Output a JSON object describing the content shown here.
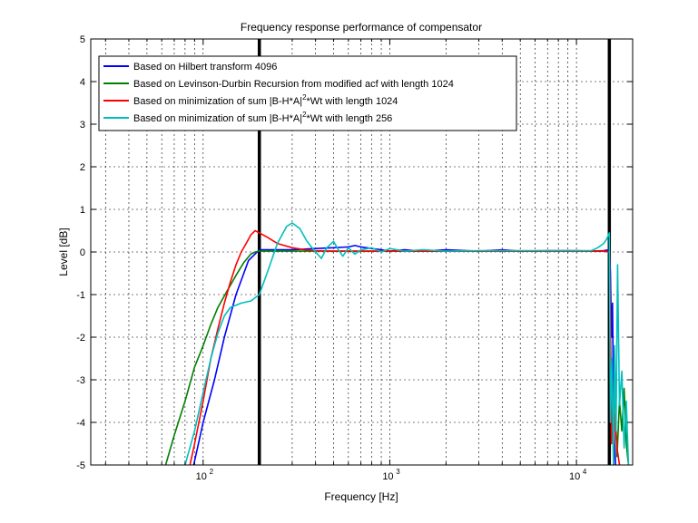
{
  "chart_data": {
    "type": "line",
    "title": "Frequency response performance of compensator",
    "xlabel": "Frequency [Hz]",
    "ylabel": "Level [dB]",
    "xscale": "log",
    "xlim": [
      25,
      20000
    ],
    "ylim": [
      -5,
      5
    ],
    "grid": true,
    "legend_position": "top-left",
    "x_ticks": [
      {
        "value": 100,
        "base": "10",
        "exp": "2"
      },
      {
        "value": 1000,
        "base": "10",
        "exp": "3"
      },
      {
        "value": 10000,
        "base": "10",
        "exp": "4"
      }
    ],
    "y_ticks": [
      {
        "value": 5,
        "label": "5"
      },
      {
        "value": 4,
        "label": "4"
      },
      {
        "value": 3,
        "label": "3"
      },
      {
        "value": 2,
        "label": "2"
      },
      {
        "value": 1,
        "label": "1"
      },
      {
        "value": 0,
        "label": "0"
      },
      {
        "value": -1,
        "label": "-1"
      },
      {
        "value": -2,
        "label": "-2"
      },
      {
        "value": -3,
        "label": "-3"
      },
      {
        "value": -4,
        "label": "-4"
      },
      {
        "value": -5,
        "label": "-5"
      }
    ],
    "vlines": [
      200,
      15000
    ],
    "legend": [
      {
        "pre": "Based on Hilbert transform 4096",
        "sup": "",
        "post": "",
        "color": "#0000ff"
      },
      {
        "pre": "Based on Levinson-Durbin Recursion from modified acf with length 1024",
        "sup": "",
        "post": "",
        "color": "#008000"
      },
      {
        "pre": "Based on minimization of sum |B-H*A|",
        "sup": "2",
        "post": "*Wt with length 1024",
        "color": "#ff0000"
      },
      {
        "pre": "Based on minimization of sum |B-H*A|",
        "sup": "2",
        "post": "*Wt with length 256",
        "color": "#00bfbf"
      }
    ],
    "series": [
      {
        "name": "Based on Hilbert transform 4096",
        "color": "#0000ff",
        "x": [
          89,
          100,
          115,
          130,
          150,
          175,
          200,
          230,
          300,
          400,
          500,
          600,
          650,
          700,
          800,
          900,
          1000,
          1200,
          1500,
          2000,
          3000,
          4000,
          5000,
          7000,
          10000,
          12000,
          14000,
          15000,
          15200,
          15400,
          15600,
          15800,
          16000,
          16200
        ],
        "y": [
          -5,
          -4.0,
          -3.0,
          -2.0,
          -1.0,
          -0.2,
          0.05,
          0.05,
          0.05,
          0.08,
          0.1,
          0.12,
          0.15,
          0.12,
          0.08,
          0.05,
          0.02,
          0.05,
          0.02,
          0.05,
          0.02,
          0.05,
          0.02,
          0.03,
          0.03,
          0.02,
          0.03,
          0.05,
          -0.5,
          -2.0,
          -1.2,
          -3.5,
          -4.5,
          -5
        ]
      },
      {
        "name": "Based on Levinson-Durbin Recursion from modified acf with length 1024",
        "color": "#008000",
        "x": [
          63,
          70,
          80,
          90,
          100,
          110,
          120,
          135,
          150,
          165,
          180,
          190,
          200,
          250,
          300,
          500,
          1000,
          2000,
          5000,
          10000,
          14000,
          15000,
          15300,
          15600,
          16000,
          16500,
          17000,
          17500,
          18000,
          18500,
          19000
        ],
        "y": [
          -5,
          -4.3,
          -3.5,
          -2.7,
          -2.2,
          -1.7,
          -1.3,
          -0.9,
          -0.55,
          -0.25,
          -0.05,
          0.0,
          0.02,
          0.02,
          0.02,
          0.02,
          0.02,
          0.02,
          0.02,
          0.02,
          0.02,
          0.0,
          -3.0,
          -4.0,
          -3.2,
          -4.8,
          -3.5,
          -4.2,
          -3.2,
          -4.5,
          -5
        ]
      },
      {
        "name": "Based on minimization of sum |B-H*A|^2*Wt with length 1024",
        "color": "#ff0000",
        "x": [
          85,
          90,
          100,
          110,
          120,
          130,
          140,
          150,
          160,
          170,
          180,
          190,
          200,
          220,
          250,
          300,
          350,
          400,
          500,
          1000,
          2000,
          5000,
          10000,
          14000,
          15000,
          15200,
          15400,
          15600,
          15800,
          16000,
          16500,
          17000
        ],
        "y": [
          -5,
          -4.5,
          -3.5,
          -2.5,
          -1.8,
          -1.2,
          -0.7,
          -0.3,
          0.0,
          0.2,
          0.4,
          0.5,
          0.45,
          0.35,
          0.2,
          0.1,
          0.05,
          0.03,
          0.02,
          0.02,
          0.02,
          0.02,
          0.02,
          0.02,
          0.0,
          -1.5,
          -4.5,
          -3.0,
          -5,
          -3.8,
          -4.6,
          -5
        ]
      },
      {
        "name": "Based on minimization of sum |B-H*A|^2*Wt with length 256",
        "color": "#00bfbf",
        "x": [
          80,
          90,
          100,
          110,
          120,
          130,
          140,
          150,
          160,
          180,
          200,
          220,
          250,
          280,
          300,
          330,
          360,
          400,
          430,
          460,
          500,
          530,
          560,
          600,
          650,
          700,
          800,
          900,
          1000,
          1200,
          1500,
          2000,
          3000,
          5000,
          8000,
          10000,
          12000,
          13000,
          14000,
          14500,
          15000,
          15200,
          15500,
          15800,
          16000,
          16300,
          16600,
          17000,
          17500,
          18000,
          18500,
          19000
        ],
        "y": [
          -5,
          -4.2,
          -3.3,
          -2.5,
          -1.9,
          -1.5,
          -1.3,
          -1.25,
          -1.2,
          -1.15,
          -1.0,
          -0.5,
          0.2,
          0.6,
          0.68,
          0.55,
          0.25,
          0.0,
          -0.15,
          0.1,
          0.25,
          0.05,
          -0.1,
          0.1,
          -0.05,
          0.05,
          0.1,
          0.0,
          0.08,
          0.02,
          0.05,
          0.02,
          0.03,
          0.03,
          0.03,
          0.03,
          0.03,
          0.1,
          0.2,
          0.3,
          0.45,
          -4.0,
          -2.5,
          -5,
          -2.2,
          -4.2,
          -0.3,
          -3.6,
          -2.8,
          -4.6,
          -3.5,
          -5
        ]
      }
    ]
  }
}
